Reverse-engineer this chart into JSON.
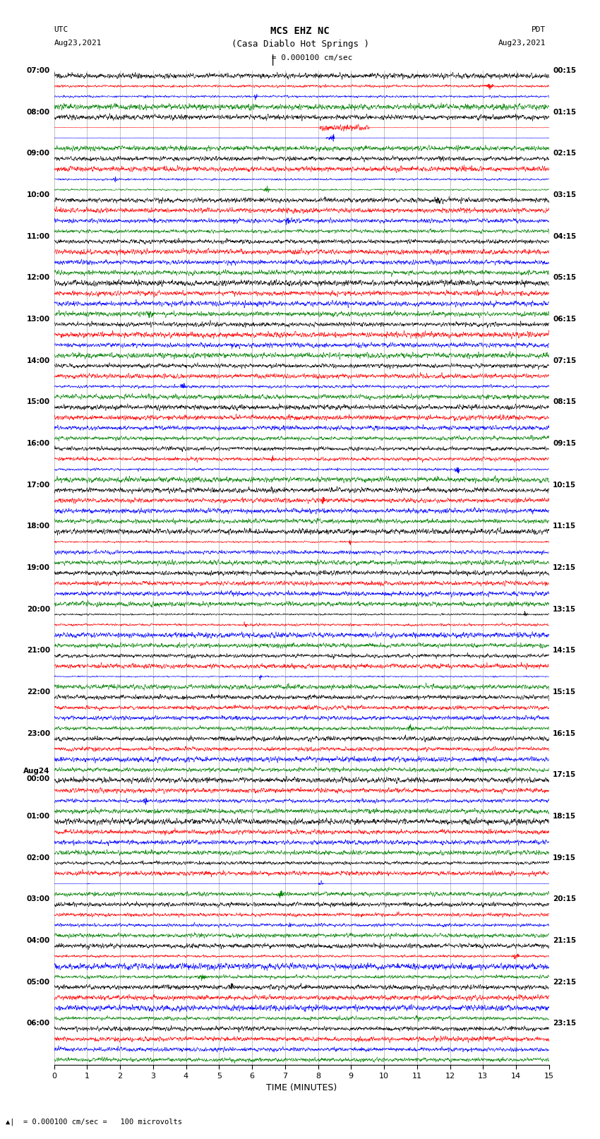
{
  "title_line1": "MCS EHZ NC",
  "title_line2": "(Casa Diablo Hot Springs )",
  "scale_label": "= 0.000100 cm/sec",
  "left_header_line1": "UTC",
  "left_header_line2": "Aug23,2021",
  "right_header_line1": "PDT",
  "right_header_line2": "Aug23,2021",
  "bottom_label": "TIME (MINUTES)",
  "bottom_note": "= 0.000100 cm/sec =   100 microvolts",
  "trace_colors": [
    "black",
    "red",
    "blue",
    "green"
  ],
  "background_color": "white",
  "fig_width": 8.5,
  "fig_height": 16.13,
  "dpi": 100,
  "xlim": [
    0,
    15
  ],
  "xticks": [
    0,
    1,
    2,
    3,
    4,
    5,
    6,
    7,
    8,
    9,
    10,
    11,
    12,
    13,
    14,
    15
  ],
  "grid_color": "#aaaaaa",
  "left_label_utc_times": [
    "07:00",
    "08:00",
    "09:00",
    "10:00",
    "11:00",
    "12:00",
    "13:00",
    "14:00",
    "15:00",
    "16:00",
    "17:00",
    "18:00",
    "19:00",
    "20:00",
    "21:00",
    "22:00",
    "23:00",
    "Aug24\n00:00",
    "01:00",
    "02:00",
    "03:00",
    "04:00",
    "05:00",
    "06:00"
  ],
  "right_label_pdt_times": [
    "00:15",
    "01:15",
    "02:15",
    "03:15",
    "04:15",
    "05:15",
    "06:15",
    "07:15",
    "08:15",
    "09:15",
    "10:15",
    "11:15",
    "12:15",
    "13:15",
    "14:15",
    "15:15",
    "16:15",
    "17:15",
    "18:15",
    "19:15",
    "20:15",
    "21:15",
    "22:15",
    "23:15"
  ]
}
